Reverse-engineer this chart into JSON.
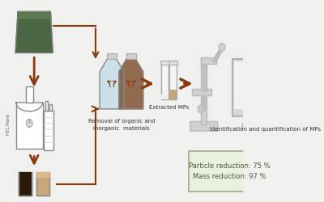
{
  "bg_color": "#f0f0ee",
  "arrow_color": "#8B3A0F",
  "box_bg": "#e8f0e0",
  "box_border": "#9aaa8a",
  "label_color": "#333333",
  "particle_reduction": "Particle reduction: 75 %",
  "mass_reduction": "Mass reduction: 97 %",
  "label_removal": "Removal of organic and\ninorganic  materials",
  "label_extracted": "Extracted MPs",
  "label_identification": "Identification and quantification of MPs",
  "figsize": [
    4.0,
    2.5
  ],
  "dpi": 100
}
